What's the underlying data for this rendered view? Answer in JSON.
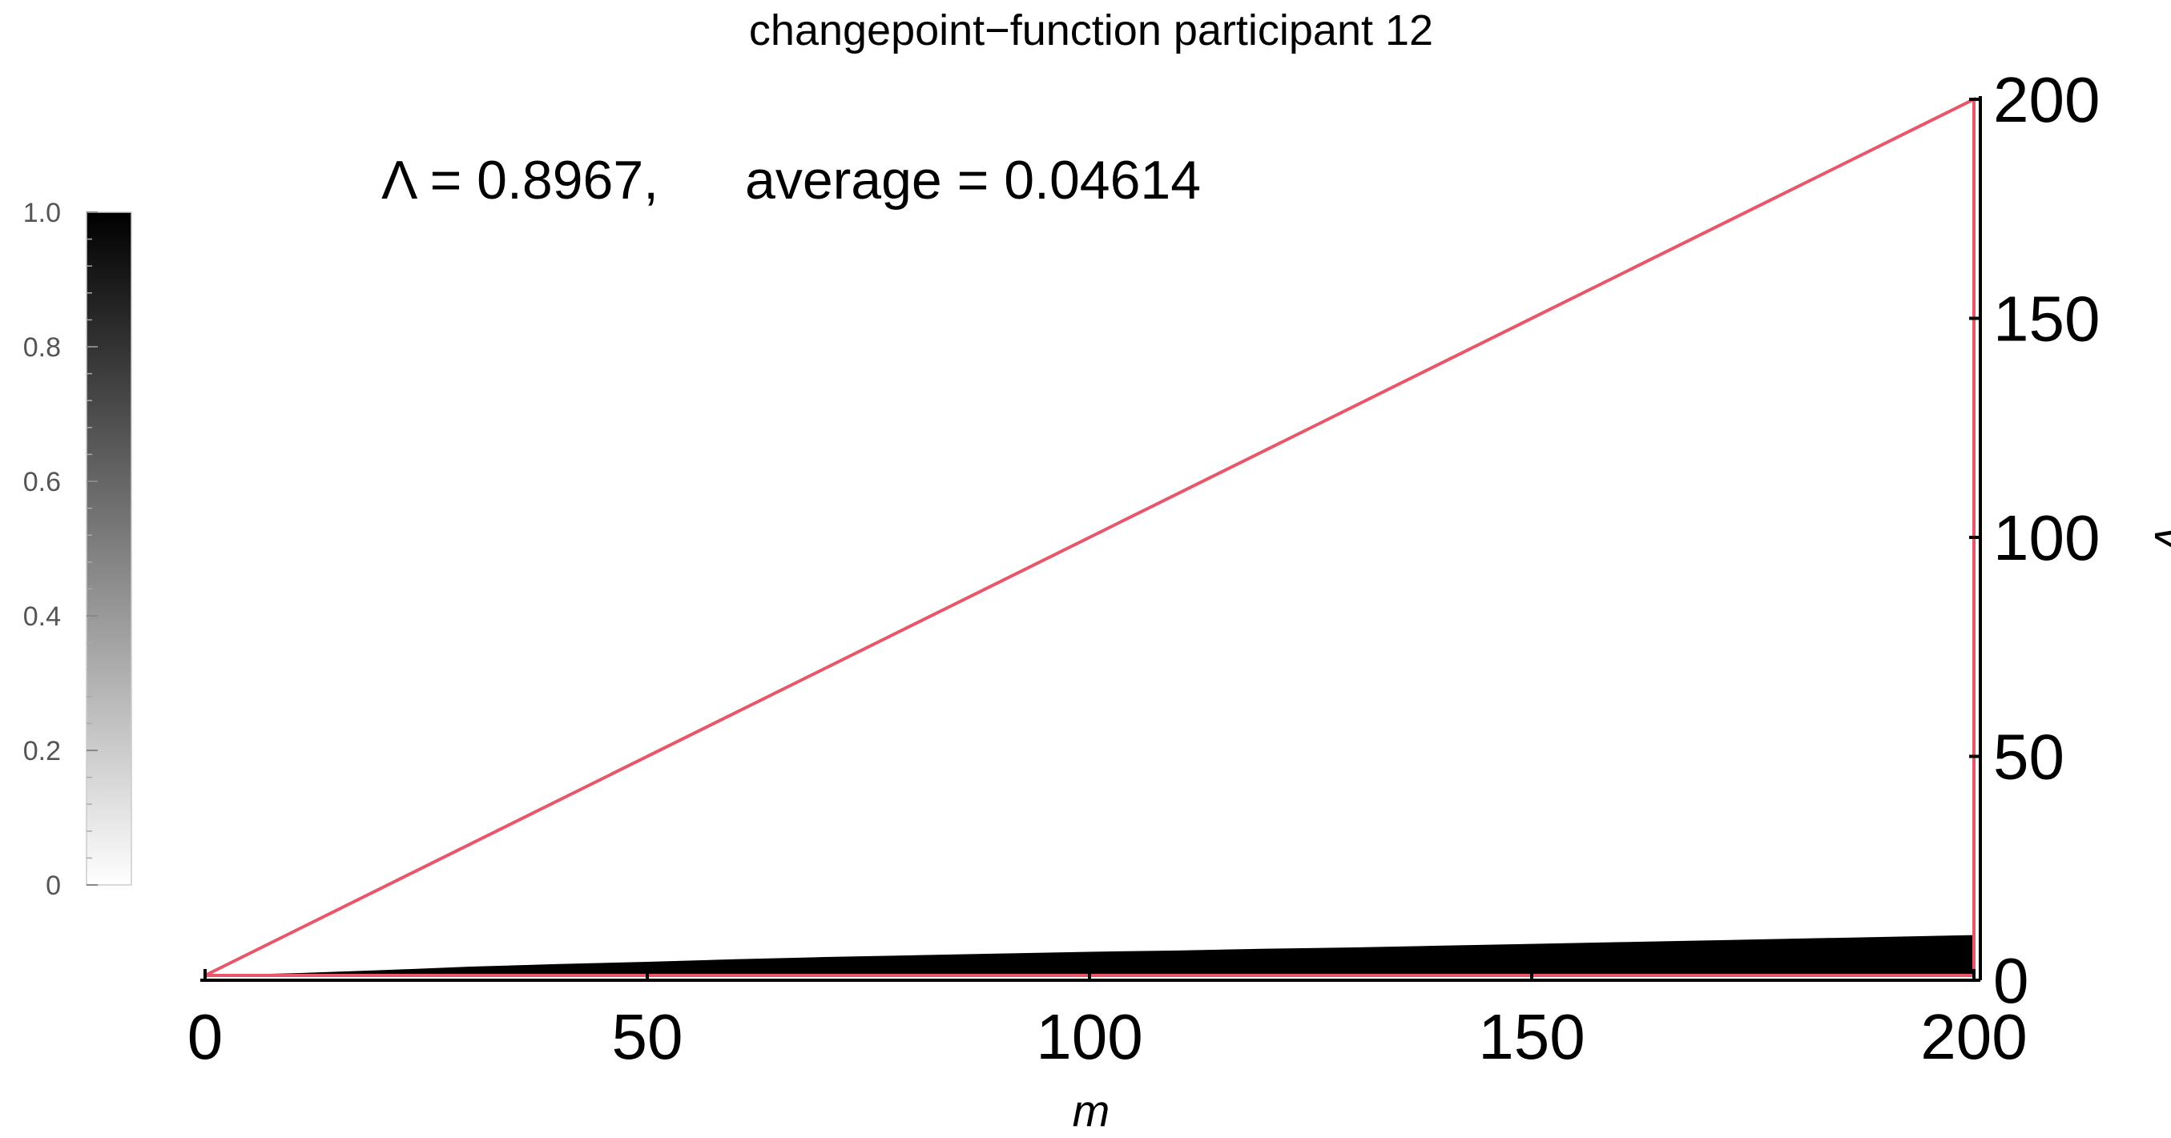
{
  "chart_data": {
    "type": "heatmap",
    "title": "changepoint−function participant 12",
    "annotation": {
      "lambda_label": "Λ = 0.8967,",
      "average_label": "average = 0.04614"
    },
    "xlabel": "m",
    "ylabel": "v",
    "xlim": [
      0,
      200
    ],
    "ylim": [
      0,
      200
    ],
    "x_ticks": [
      0,
      50,
      100,
      150,
      200
    ],
    "y_ticks": [
      0,
      50,
      100,
      150,
      200
    ],
    "x_tick_labels": [
      "0",
      "50",
      "100",
      "150",
      "200"
    ],
    "y_tick_labels": [
      "0",
      "50",
      "100",
      "150",
      "200"
    ],
    "y_axis_position": "right",
    "grid": false,
    "colorbar": {
      "range": [
        0,
        1
      ],
      "ticks": [
        0,
        0.2,
        0.4,
        0.6,
        0.8,
        1.0
      ],
      "tick_labels": [
        "0",
        "0.2",
        "0.4",
        "0.6",
        "0.8",
        "1.0"
      ],
      "low_color": "#ffffff",
      "high_color": "#000000",
      "position": "left"
    },
    "domain_outline": {
      "vertices": [
        [
          0,
          0
        ],
        [
          200,
          200
        ],
        [
          200,
          0
        ]
      ],
      "color": "#e8566a"
    },
    "dark_region_upper_edge": {
      "m": [
        0,
        10,
        20,
        30,
        40,
        50,
        60,
        70,
        80,
        90,
        100,
        110,
        120,
        130,
        140,
        150,
        160,
        170,
        180,
        190,
        200
      ],
      "v": [
        0,
        0.5,
        1.2,
        2.0,
        2.6,
        3.1,
        3.7,
        4.2,
        4.6,
        5.0,
        5.4,
        5.7,
        6.1,
        6.4,
        6.8,
        7.2,
        7.6,
        8.0,
        8.4,
        8.8,
        9.2
      ]
    },
    "dark_region_value": 1.0
  }
}
